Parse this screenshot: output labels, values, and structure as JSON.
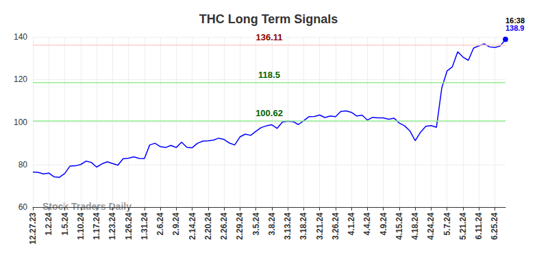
{
  "chart_data": {
    "type": "line",
    "title": "THC Long Term Signals",
    "categories": [
      "12.27.23",
      null,
      null,
      "1.2.24",
      null,
      null,
      "1.5.24",
      null,
      null,
      "1.10.24",
      null,
      null,
      "1.17.24",
      null,
      null,
      "1.23.24",
      null,
      null,
      "1.26.24",
      null,
      null,
      "1.31.24",
      null,
      null,
      "2.6.24",
      null,
      null,
      "2.9.24",
      null,
      null,
      "2.14.24",
      null,
      null,
      "2.20.24",
      null,
      null,
      "2.26.24",
      null,
      null,
      "2.29.24",
      null,
      null,
      "3.5.24",
      null,
      null,
      "3.8.24",
      null,
      null,
      "3.13.24",
      null,
      null,
      "3.18.24",
      null,
      null,
      "3.21.24",
      null,
      null,
      "3.26.24",
      null,
      null,
      "4.1.24",
      null,
      null,
      "4.4.24",
      null,
      null,
      "4.9.24",
      null,
      null,
      "4.15.24",
      null,
      null,
      "4.18.24",
      null,
      null,
      "4.24.24",
      null,
      null,
      "5.7.24",
      null,
      null,
      "5.21.24",
      null,
      null,
      "6.11.24",
      null,
      null,
      "6.25.24",
      null,
      null
    ],
    "values": [
      76.5,
      76.3,
      75.6,
      76.0,
      74.2,
      74.0,
      75.8,
      79.3,
      79.4,
      80.0,
      81.6,
      81.0,
      78.8,
      80.3,
      81.3,
      80.5,
      79.7,
      82.7,
      83.0,
      83.6,
      82.9,
      82.8,
      89.2,
      90.0,
      88.4,
      88.0,
      89.0,
      88.0,
      90.5,
      88.1,
      87.9,
      90.0,
      91.0,
      91.2,
      91.5,
      92.4,
      91.8,
      90.1,
      89.2,
      93.0,
      94.3,
      93.7,
      95.6,
      97.4,
      98.2,
      98.7,
      97.0,
      100.0,
      100.4,
      100.2,
      98.8,
      100.6,
      102.5,
      102.6,
      103.3,
      102.1,
      102.8,
      102.5,
      105.0,
      105.2,
      104.5,
      102.8,
      103.2,
      100.9,
      102.2,
      101.9,
      101.9,
      101.3,
      101.8,
      99.5,
      98.2,
      95.8,
      91.2,
      95.2,
      98.0,
      98.3,
      97.5,
      116.0,
      124.0,
      126.0,
      133.0,
      130.5,
      129.0,
      134.8,
      135.8,
      136.7,
      135.3,
      135.0,
      135.7,
      138.9
    ],
    "color": "#0000ff",
    "ylim": [
      60,
      140
    ],
    "yticks": [
      60,
      80,
      100,
      120,
      140
    ],
    "grid": true,
    "reference_lines": [
      {
        "value": 136.11,
        "color": "#ffcccc",
        "label_color": "#8b0000"
      },
      {
        "value": 118.5,
        "color": "#90ee90",
        "label_color": "#006400"
      },
      {
        "value": 100.62,
        "color": "#90ee90",
        "label_color": "#006400"
      }
    ],
    "last_time": "16:38",
    "watermark": "Stock Traders Daily"
  }
}
